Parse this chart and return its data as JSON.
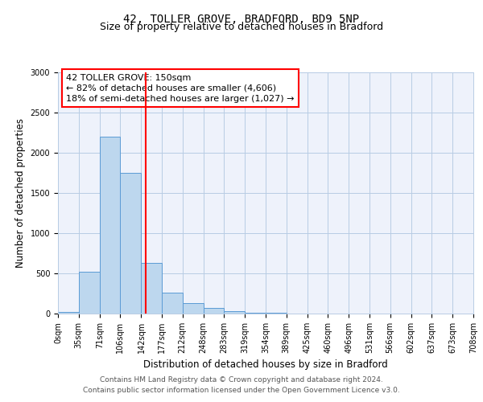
{
  "title": "42, TOLLER GROVE, BRADFORD, BD9 5NP",
  "subtitle": "Size of property relative to detached houses in Bradford",
  "xlabel": "Distribution of detached houses by size in Bradford",
  "ylabel": "Number of detached properties",
  "bin_edges": [
    0,
    35,
    71,
    106,
    142,
    177,
    212,
    248,
    283,
    319,
    354,
    389,
    425,
    460,
    496,
    531,
    566,
    602,
    637,
    673,
    708
  ],
  "counts": [
    20,
    520,
    2200,
    1750,
    630,
    265,
    130,
    70,
    30,
    15,
    10,
    5,
    2,
    1,
    0,
    0,
    0,
    0,
    0,
    0
  ],
  "bar_color": "#bdd7ee",
  "bar_edge_color": "#5b9bd5",
  "red_line_x": 150,
  "annotation_line1": "42 TOLLER GROVE: 150sqm",
  "annotation_line2": "← 82% of detached houses are smaller (4,606)",
  "annotation_line3": "18% of semi-detached houses are larger (1,027) →",
  "ylim": [
    0,
    3000
  ],
  "yticks": [
    0,
    500,
    1000,
    1500,
    2000,
    2500,
    3000
  ],
  "footer_line1": "Contains HM Land Registry data © Crown copyright and database right 2024.",
  "footer_line2": "Contains public sector information licensed under the Open Government Licence v3.0.",
  "bg_color": "#eef2fb",
  "grid_color": "#b8cce4",
  "title_fontsize": 10,
  "subtitle_fontsize": 9,
  "axis_label_fontsize": 8.5,
  "tick_fontsize": 7,
  "annotation_fontsize": 8,
  "footer_fontsize": 6.5
}
